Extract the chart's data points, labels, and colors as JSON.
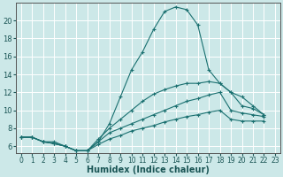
{
  "bg_color": "#cce8e8",
  "grid_color": "#ffffff",
  "line_color": "#1a7070",
  "xlabel": "Humidex (Indice chaleur)",
  "yticks": [
    6,
    8,
    10,
    12,
    14,
    16,
    18,
    20
  ],
  "ylim": [
    5.2,
    22.0
  ],
  "xlim": [
    -0.5,
    23.5
  ],
  "series1_x": [
    0,
    1,
    2,
    3,
    4,
    5,
    6,
    7,
    8,
    9,
    10,
    11,
    12,
    13,
    14,
    15,
    16,
    17,
    18,
    19,
    20,
    21,
    22
  ],
  "series1_y": [
    7.0,
    7.0,
    6.5,
    6.5,
    6.0,
    5.5,
    5.5,
    6.5,
    8.5,
    11.5,
    14.5,
    16.5,
    19.0,
    21.0,
    21.5,
    21.2,
    19.5,
    14.5,
    13.0,
    12.0,
    10.5,
    10.2,
    9.5
  ],
  "series2_x": [
    0,
    1,
    2,
    3,
    4,
    5,
    6,
    7,
    8,
    9,
    10,
    11,
    12,
    13,
    14,
    15,
    16,
    17,
    18,
    19,
    20,
    21,
    22
  ],
  "series2_y": [
    7.0,
    7.0,
    6.5,
    6.3,
    6.0,
    5.5,
    5.5,
    6.8,
    8.0,
    9.0,
    10.0,
    11.0,
    11.8,
    12.3,
    12.7,
    13.0,
    13.0,
    13.2,
    13.0,
    12.0,
    11.5,
    10.5,
    9.5
  ],
  "series3_x": [
    0,
    1,
    2,
    3,
    4,
    5,
    6,
    7,
    8,
    9,
    10,
    11,
    12,
    13,
    14,
    15,
    16,
    17,
    18,
    19,
    20,
    21,
    22
  ],
  "series3_y": [
    7.0,
    7.0,
    6.5,
    6.3,
    6.0,
    5.5,
    5.5,
    6.5,
    7.5,
    8.0,
    8.5,
    9.0,
    9.5,
    10.0,
    10.5,
    11.0,
    11.3,
    11.7,
    12.0,
    10.0,
    9.7,
    9.5,
    9.3
  ],
  "series4_x": [
    0,
    1,
    2,
    3,
    4,
    5,
    6,
    7,
    8,
    9,
    10,
    11,
    12,
    13,
    14,
    15,
    16,
    17,
    18,
    19,
    20,
    21,
    22
  ],
  "series4_y": [
    7.0,
    7.0,
    6.5,
    6.3,
    6.0,
    5.5,
    5.5,
    6.2,
    6.8,
    7.2,
    7.7,
    8.0,
    8.3,
    8.7,
    9.0,
    9.3,
    9.5,
    9.8,
    10.0,
    9.0,
    8.8,
    8.8,
    8.8
  ]
}
